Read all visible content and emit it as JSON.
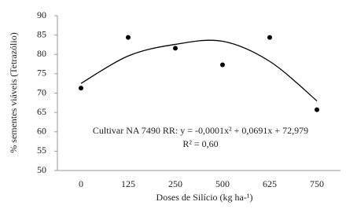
{
  "chart_data": {
    "type": "scatter",
    "x_label": "Doses de Silício (kg ha-¹)",
    "y_label": "% sementes viáveis (Tetrazólio)",
    "categories": [
      "0",
      "125",
      "250",
      "500",
      "625",
      "750"
    ],
    "series": [
      {
        "color": "#000000",
        "values": [
          71.3,
          84.4,
          81.6,
          77.3,
          84.4,
          65.7
        ]
      }
    ],
    "trend": {
      "color": "#000000",
      "values": [
        72.5,
        79.6,
        82.6,
        83.4,
        78.2,
        68.0
      ]
    },
    "annotation": [
      "Cultivar NA 7490 RR: y = -0,0001x² + 0,0691x + 72,979",
      "R² = 0,60"
    ],
    "ylim": [
      50,
      90
    ],
    "yticks": [
      50,
      55,
      60,
      65,
      70,
      75,
      80,
      85,
      90
    ],
    "grid": false
  }
}
